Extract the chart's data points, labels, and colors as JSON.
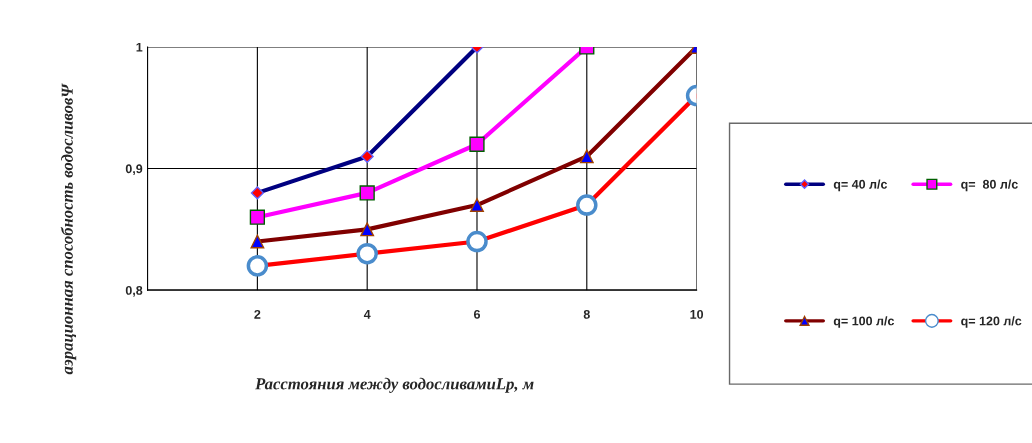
{
  "chart_data": {
    "type": "line",
    "xlabel": "Расстояния между водосливамиLр, м",
    "ylabel": "аэрационная способность водосливовΨ",
    "xlim": [
      0,
      10
    ],
    "xticks": [
      2,
      4,
      6,
      8,
      10
    ],
    "ylim": [
      0.8,
      1
    ],
    "yticks": [
      {
        "value": 0.8,
        "label": "0,8"
      },
      {
        "value": 0.9,
        "label": "0,9"
      },
      1
    ],
    "grid": true,
    "legend": "right",
    "series": [
      {
        "name": "q= 40 л/с",
        "color": "#000080",
        "marker": "diamond",
        "x": [
          2,
          4,
          6
        ],
        "values": [
          0.88,
          0.91,
          1.0
        ]
      },
      {
        "name": "q=  80 л/с",
        "color": "#ff00ff",
        "marker": "square",
        "x": [
          2,
          4,
          6,
          8
        ],
        "values": [
          0.86,
          0.88,
          0.92,
          1.0
        ]
      },
      {
        "name": "q= 100 л/с",
        "color": "#800000",
        "marker": "triangle",
        "x": [
          2,
          4,
          6,
          8,
          10
        ],
        "values": [
          0.84,
          0.85,
          0.87,
          0.91,
          1.0
        ]
      },
      {
        "name": "q= 120 л/с",
        "color": "#ff0000",
        "marker": "circle",
        "x": [
          2,
          4,
          6,
          8,
          10
        ],
        "values": [
          0.82,
          0.83,
          0.84,
          0.87,
          0.96
        ]
      }
    ]
  }
}
